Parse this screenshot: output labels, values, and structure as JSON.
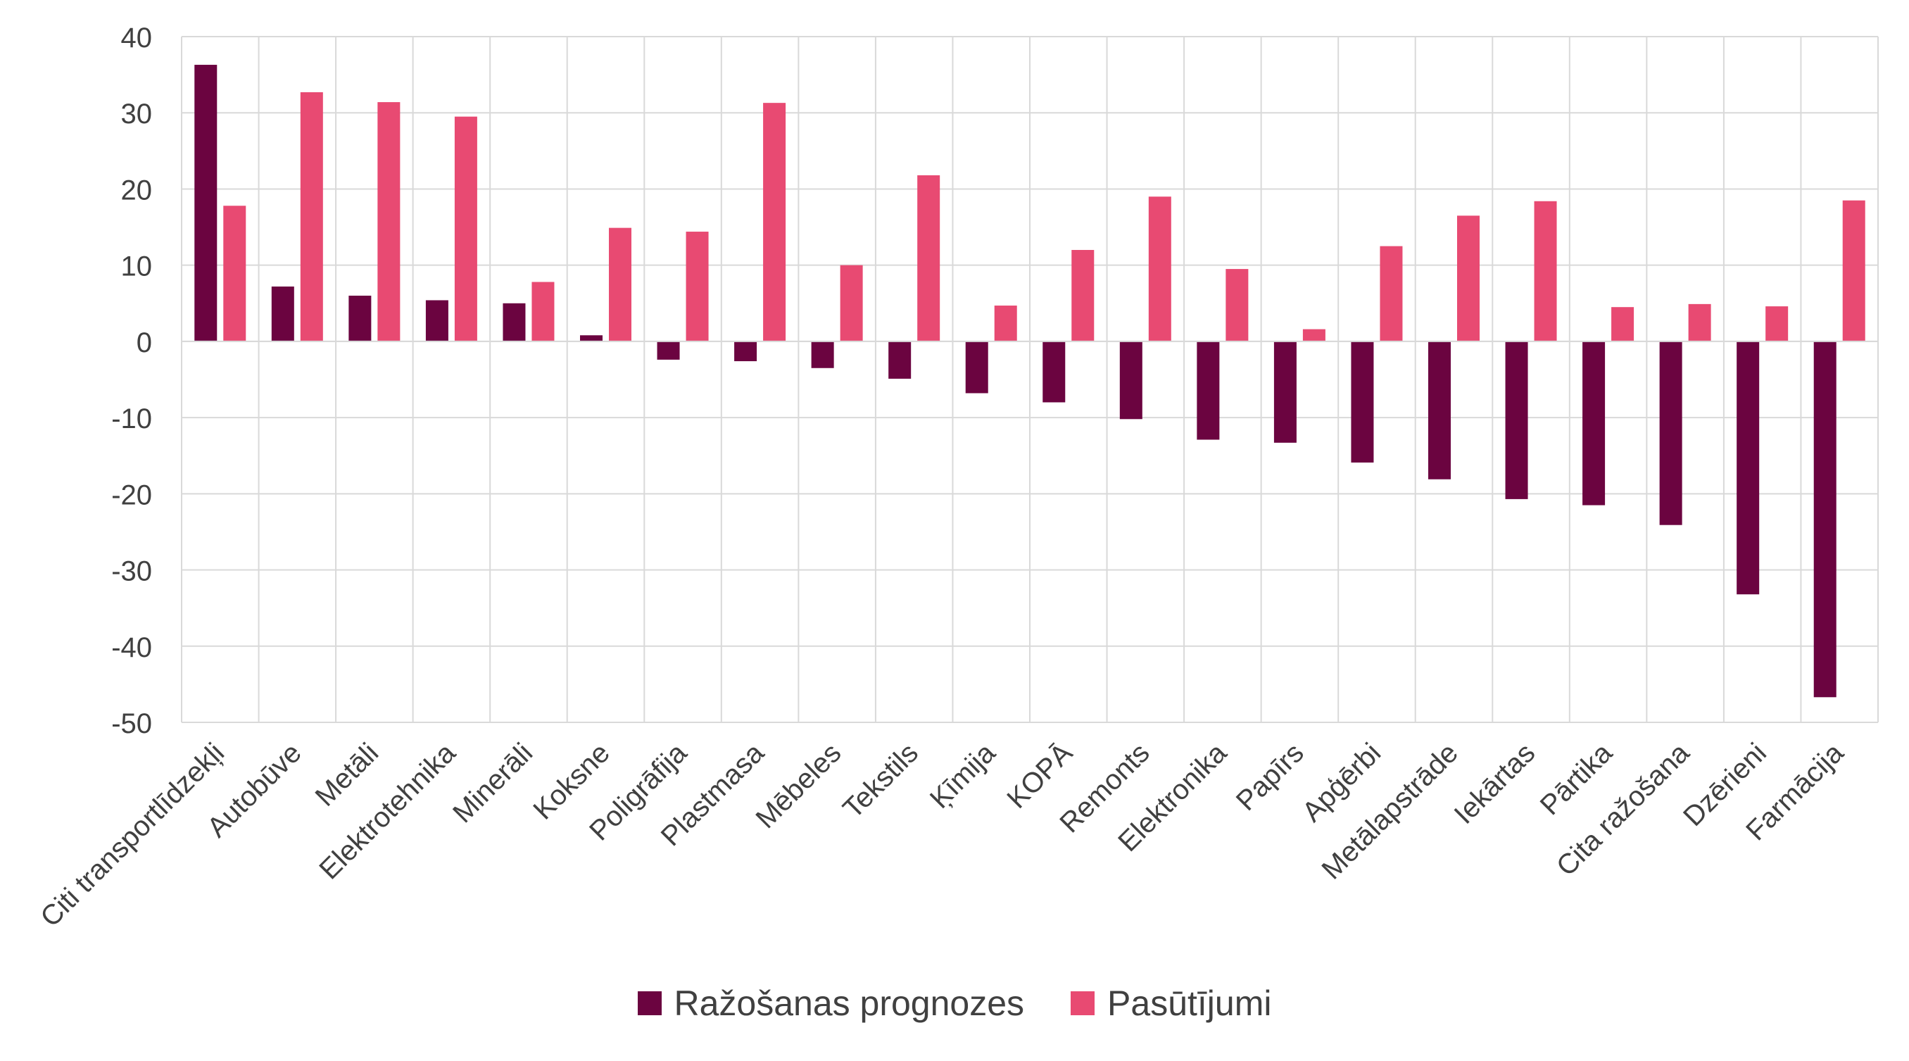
{
  "chart_data": {
    "type": "bar",
    "title": "",
    "xlabel": "",
    "ylabel": "",
    "ylim": [
      -50,
      40
    ],
    "yticks": [
      40,
      30,
      20,
      10,
      0,
      -10,
      -20,
      -30,
      -40,
      -50
    ],
    "grid": true,
    "legend_position": "bottom",
    "categories": [
      "Citi transportlīdzekļi",
      "Autobūve",
      "Metāli",
      "Elektrotehnika",
      "Minerāli",
      "Koksne",
      "Poligrāfija",
      "Plastmasa",
      "Mēbeles",
      "Tekstils",
      "Ķīmija",
      "KOPĀ",
      "Remonts",
      "Elektronika",
      "Papīrs",
      "Apģērbi",
      "Metālapstrāde",
      "Iekārtas",
      "Pārtika",
      "Cita ražošana",
      "Dzērieni",
      "Farmācija"
    ],
    "series": [
      {
        "name": "Ražošanas prognozes",
        "color": "#6b0440",
        "values": [
          36.3,
          7.2,
          6.0,
          5.4,
          5.0,
          0.8,
          -2.4,
          -2.6,
          -3.5,
          -4.9,
          -6.8,
          -8.0,
          -10.2,
          -12.9,
          -13.3,
          -15.9,
          -18.1,
          -20.7,
          -21.5,
          -24.1,
          -33.2,
          -46.7
        ]
      },
      {
        "name": "Pasūtījumi",
        "color": "#e84a72",
        "values": [
          17.8,
          32.7,
          31.4,
          29.5,
          7.8,
          14.9,
          14.4,
          31.3,
          10.0,
          21.8,
          4.7,
          12.0,
          19.0,
          9.5,
          1.6,
          12.5,
          16.5,
          18.4,
          4.5,
          4.9,
          4.6,
          18.5
        ]
      }
    ]
  }
}
